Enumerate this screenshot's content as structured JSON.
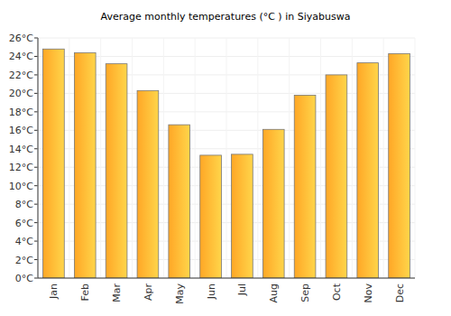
{
  "chart_data": {
    "type": "bar",
    "title": "Average monthly temperatures (°C ) in Siyabuswa",
    "categories": [
      "Jan",
      "Feb",
      "Mar",
      "Apr",
      "May",
      "Jun",
      "Jul",
      "Aug",
      "Sep",
      "Oct",
      "Nov",
      "Dec"
    ],
    "values": [
      24.8,
      24.4,
      23.2,
      20.3,
      16.6,
      13.3,
      13.4,
      16.1,
      19.8,
      22.0,
      23.3,
      24.3
    ],
    "color": "#ffa726",
    "ylim": [
      0,
      26
    ],
    "yticks": [
      {
        "value": 0,
        "label": "0°C"
      },
      {
        "value": 2,
        "label": "2°C"
      },
      {
        "value": 4,
        "label": "4°C"
      },
      {
        "value": 6,
        "label": "6°C"
      },
      {
        "value": 8,
        "label": "8°C"
      },
      {
        "value": 10,
        "label": "10°C"
      },
      {
        "value": 12,
        "label": "12°C"
      },
      {
        "value": 14,
        "label": "14°C"
      },
      {
        "value": 16,
        "label": "16°C"
      },
      {
        "value": 18,
        "label": "18°C"
      },
      {
        "value": 20,
        "label": "20°C"
      },
      {
        "value": 22,
        "label": "22°C"
      },
      {
        "value": 24,
        "label": "24°C"
      },
      {
        "value": 26,
        "label": "26°C"
      }
    ],
    "grid": true
  }
}
